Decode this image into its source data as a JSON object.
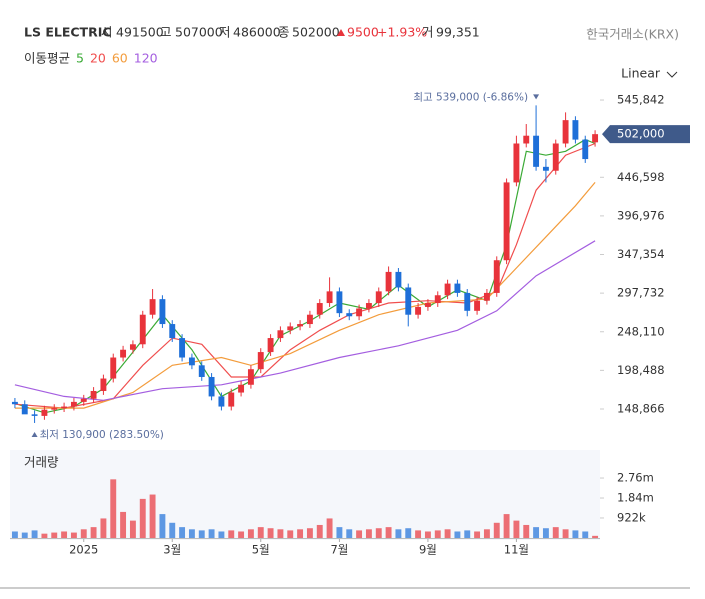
{
  "header": {
    "name": "LS ELECTRIC",
    "open_label": "시",
    "open": "491500",
    "high_label": "고",
    "high": "507000",
    "low_label": "저",
    "low": "486000",
    "close_label": "종",
    "close": "502000",
    "change": "9500",
    "change_pct": "+1.93%",
    "vol_label": "거",
    "volume": "99,351",
    "exchange": "한국거래소(KRX)",
    "scale": "Linear"
  },
  "chart_data": {
    "type": "candlestick",
    "categories": [
      null,
      null,
      null,
      null,
      null,
      null,
      null,
      "2025",
      null,
      null,
      null,
      null,
      null,
      null,
      null,
      null,
      "3월",
      null,
      null,
      null,
      null,
      null,
      null,
      null,
      null,
      "5월",
      null,
      null,
      null,
      null,
      null,
      null,
      null,
      "7월",
      null,
      null,
      null,
      null,
      null,
      null,
      null,
      null,
      "9월",
      null,
      null,
      null,
      null,
      null,
      null,
      null,
      null,
      "11월",
      null,
      null,
      null,
      null,
      null,
      null,
      null,
      null
    ],
    "candles": {
      "open": [
        158000,
        155000,
        142000,
        140000,
        148000,
        150000,
        152000,
        158000,
        162000,
        172000,
        188000,
        215000,
        225000,
        232000,
        270000,
        290000,
        258000,
        240000,
        215000,
        205000,
        190000,
        165000,
        152000,
        170000,
        180000,
        200000,
        222000,
        240000,
        250000,
        255000,
        258000,
        270000,
        285000,
        300000,
        272000,
        268000,
        278000,
        285000,
        300000,
        325000,
        305000,
        270000,
        280000,
        285000,
        295000,
        310000,
        298000,
        275000,
        288000,
        298000,
        340000,
        440000,
        490000,
        500000,
        460000,
        455000,
        490000,
        520000,
        495000,
        491500
      ],
      "high": [
        163000,
        160000,
        147000,
        153000,
        155000,
        157000,
        163000,
        167000,
        177000,
        193000,
        220000,
        230000,
        237000,
        275000,
        303000,
        295000,
        263000,
        245000,
        220000,
        210000,
        195000,
        170000,
        175000,
        185000,
        205000,
        227000,
        245000,
        255000,
        260000,
        263000,
        275000,
        290000,
        318000,
        305000,
        277000,
        283000,
        290000,
        305000,
        332000,
        330000,
        310000,
        285000,
        290000,
        300000,
        315000,
        315000,
        303000,
        293000,
        303000,
        345000,
        445000,
        500000,
        515000,
        539000,
        470000,
        495000,
        530000,
        525000,
        500000,
        507000
      ],
      "low": [
        150000,
        150000,
        130900,
        135000,
        143000,
        145000,
        147000,
        153000,
        157000,
        167000,
        183000,
        210000,
        220000,
        227000,
        265000,
        253000,
        235000,
        210000,
        200000,
        185000,
        160000,
        147000,
        147000,
        165000,
        175000,
        195000,
        217000,
        235000,
        245000,
        250000,
        253000,
        265000,
        280000,
        267000,
        263000,
        263000,
        273000,
        280000,
        295000,
        300000,
        255000,
        265000,
        275000,
        280000,
        290000,
        293000,
        268000,
        270000,
        283000,
        293000,
        335000,
        435000,
        485000,
        455000,
        440000,
        450000,
        485000,
        490000,
        465000,
        486000
      ],
      "close": [
        155000,
        142000,
        140000,
        148000,
        150000,
        152000,
        158000,
        162000,
        172000,
        188000,
        215000,
        225000,
        232000,
        270000,
        290000,
        258000,
        240000,
        215000,
        205000,
        190000,
        165000,
        152000,
        170000,
        180000,
        200000,
        222000,
        240000,
        250000,
        255000,
        258000,
        270000,
        285000,
        300000,
        272000,
        268000,
        278000,
        285000,
        300000,
        325000,
        305000,
        270000,
        280000,
        285000,
        295000,
        310000,
        298000,
        275000,
        288000,
        298000,
        340000,
        440000,
        490000,
        500000,
        460000,
        455000,
        490000,
        520000,
        495000,
        470000,
        502000
      ],
      "up_color": "#e8333b",
      "down_color": "#1e6fd8"
    },
    "ylim": [
      102600,
      561300
    ],
    "yticks": [
      {
        "value": 545842,
        "label": "545,842"
      },
      {
        "value": 446598,
        "label": "446,598"
      },
      {
        "value": 396976,
        "label": "396,976"
      },
      {
        "value": 347354,
        "label": "347,354"
      },
      {
        "value": 297732,
        "label": "297,732"
      },
      {
        "value": 248110,
        "label": "248,110"
      },
      {
        "value": 198488,
        "label": "198,488"
      },
      {
        "value": 148866,
        "label": "148,866"
      }
    ],
    "last_label": "502,000",
    "annotations": [
      {
        "text": "최고 539,000 (-6.86%)",
        "index": 53
      },
      {
        "text": "최저 130,900 (283.50%)",
        "index": 2
      }
    ],
    "moving_averages": {
      "label": "이동평균",
      "series": [
        {
          "name": "5",
          "color": "#3aaa35",
          "x": [
            0,
            3,
            6,
            9,
            12,
            15,
            18,
            21,
            24,
            27,
            30,
            33,
            36,
            39,
            42,
            45,
            48,
            50,
            52,
            54,
            56,
            58,
            59
          ],
          "values": [
            156000,
            144000,
            152000,
            175000,
            222000,
            270000,
            225000,
            165000,
            185000,
            243000,
            262000,
            285000,
            277000,
            308000,
            280000,
            302000,
            288000,
            360000,
            480000,
            475000,
            480000,
            495000,
            490000
          ]
        },
        {
          "name": "20",
          "color": "#f04e4e",
          "x": [
            0,
            5,
            10,
            13,
            16,
            19,
            22,
            25,
            28,
            31,
            34,
            38,
            42,
            46,
            49,
            51,
            53,
            56,
            59
          ],
          "values": [
            155000,
            150000,
            162000,
            205000,
            240000,
            232000,
            190000,
            190000,
            225000,
            250000,
            270000,
            285000,
            288000,
            285000,
            300000,
            360000,
            430000,
            475000,
            490000
          ]
        },
        {
          "name": "60",
          "color": "#f39c3c",
          "x": [
            0,
            7,
            12,
            16,
            21,
            24,
            28,
            33,
            37,
            42,
            48,
            51,
            54,
            57,
            59
          ],
          "values": [
            150000,
            150000,
            170000,
            205000,
            215000,
            205000,
            220000,
            250000,
            270000,
            285000,
            290000,
            330000,
            370000,
            410000,
            440000
          ]
        },
        {
          "name": "120",
          "color": "#a45ee0",
          "x": [
            0,
            5,
            9,
            15,
            21,
            27,
            33,
            39,
            45,
            49,
            53,
            59
          ],
          "values": [
            180000,
            165000,
            160000,
            175000,
            180000,
            195000,
            215000,
            230000,
            250000,
            275000,
            320000,
            365000
          ]
        }
      ]
    },
    "volume": {
      "title": "거래량",
      "ylim": [
        0,
        4050000
      ],
      "yticks": [
        {
          "value": 2760000,
          "label": "2.76m"
        },
        {
          "value": 1840000,
          "label": "1.84m"
        },
        {
          "value": 922000,
          "label": "922k"
        }
      ],
      "values": [
        300000,
        250000,
        350000,
        200000,
        250000,
        300000,
        250000,
        400000,
        500000,
        900000,
        2700000,
        1200000,
        800000,
        1800000,
        2000000,
        1100000,
        700000,
        500000,
        400000,
        350000,
        400000,
        300000,
        350000,
        300000,
        400000,
        500000,
        450000,
        400000,
        350000,
        400000,
        450000,
        600000,
        900000,
        500000,
        400000,
        350000,
        400000,
        450000,
        500000,
        400000,
        450000,
        350000,
        300000,
        350000,
        400000,
        300000,
        350000,
        300000,
        400000,
        700000,
        1100000,
        800000,
        600000,
        500000,
        450000,
        500000,
        400000,
        350000,
        300000,
        99351
      ]
    }
  }
}
